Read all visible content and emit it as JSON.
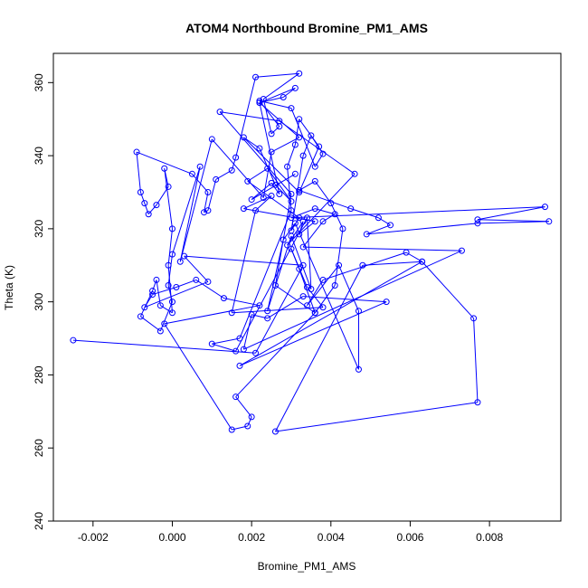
{
  "chart_data": {
    "type": "line",
    "title": "ATOM4 Northbound Bromine_PM1_AMS",
    "xlabel": "Bromine_PM1_AMS",
    "ylabel": "Theta (K)",
    "xlim": [
      -0.003,
      0.0098
    ],
    "ylim": [
      240,
      368
    ],
    "xticks": [
      -0.002,
      0.0,
      0.002,
      0.004,
      0.006,
      0.008
    ],
    "xtick_labels": [
      "-0.002",
      "0.000",
      "0.002",
      "0.004",
      "0.006",
      "0.008"
    ],
    "yticks": [
      240,
      260,
      280,
      300,
      320,
      340,
      360
    ],
    "ytick_labels": [
      "240",
      "260",
      "280",
      "300",
      "320",
      "340",
      "360"
    ],
    "grid": false,
    "series_color": "#0000ff",
    "marker": "open-circle",
    "series": [
      {
        "x": [
          -0.0025,
          0.0021,
          0.0033,
          0.0003,
          0.0009,
          -0.0007,
          -0.0005,
          0.0001,
          0.0006,
          0.0013,
          0.0022,
          -0.0002,
          0.0015,
          0.0019,
          0.002,
          0.0016,
          0.0036,
          0.0026,
          0.003,
          0.0012,
          0.0027,
          0.0046,
          0.0029,
          0.0033,
          0.0032,
          0.0036,
          0.0018,
          0.0025,
          0.0021,
          0.0015,
          0.0038,
          0.0034,
          0.003,
          0.0032,
          0.0036,
          0.0041,
          0.0043,
          0.004,
          0.0036,
          0.0032,
          0.0045,
          0.0052,
          0.0055,
          0.0049,
          0.0077,
          0.0095,
          0.0077,
          0.0094,
          0.003,
          0.0036,
          0.0041,
          0.0038,
          0.0033,
          0.0073,
          0.0018,
          0.002,
          0.0024,
          0.0033,
          0.0054,
          0.0017,
          0.0063,
          0.0048,
          0.0026,
          0.0077,
          0.0076,
          0.0063,
          0.0059,
          0.0038,
          0.0034,
          0.0042,
          0.0047,
          0.0047,
          0.0031,
          0.0028,
          0.0024,
          0.003,
          0.0035,
          0.0034,
          0.0016,
          0.001,
          0.0017,
          0.003,
          0.0029,
          0.0031,
          0.0032,
          0.0037,
          0.0032,
          0.0018,
          0.0022,
          0.0026,
          0.003,
          0.0024,
          0.0019,
          0.0032,
          0.003,
          0.0033,
          0.0035,
          0.0038,
          0.0036,
          0.003,
          0.0022,
          0.0027,
          0.0025,
          0.0023,
          0.0032,
          0.0021,
          0.0016,
          0.0015,
          0.0011,
          0.0009,
          0.0008,
          0.0009,
          0.0005,
          -0.0009,
          -0.0008,
          -0.0007,
          -0.0006,
          -0.0004,
          -0.0001,
          -0.0002,
          0.0,
          -0.0001,
          0.0,
          -0.0003,
          -0.0004,
          -0.0005,
          -0.0008,
          -0.0003,
          0.0,
          -0.0001,
          0.0,
          0.0007,
          0.0002,
          0.001,
          0.0023,
          0.0025,
          0.0032,
          0.0022,
          0.0028,
          0.0031,
          0.0022,
          0.0027,
          0.0025,
          0.002,
          0.0031
        ],
        "y": [
          289.5,
          286.0,
          310.0,
          312.5,
          305.5,
          298.5,
          302.0,
          304.0,
          306.0,
          301.0,
          299.0,
          294.0,
          265.0,
          266.0,
          268.5,
          274.0,
          297.0,
          304.5,
          329.5,
          352.0,
          349.5,
          335.0,
          315.5,
          322.0,
          318.5,
          322.0,
          325.5,
          329.0,
          325.0,
          297.0,
          298.5,
          304.0,
          314.5,
          309.0,
          297.0,
          304.5,
          320.0,
          327.0,
          333.0,
          330.5,
          325.5,
          323.0,
          321.0,
          318.5,
          321.5,
          322.0,
          322.5,
          326.0,
          323.0,
          325.5,
          324.0,
          322.0,
          315.0,
          314.0,
          287.0,
          296.5,
          295.5,
          301.5,
          300.0,
          282.5,
          311.0,
          310.0,
          264.5,
          272.5,
          295.5,
          311.0,
          313.5,
          306.0,
          299.0,
          310.0,
          297.5,
          281.5,
          321.5,
          317.0,
          297.5,
          318.0,
          303.5,
          323.0,
          286.5,
          288.5,
          290.0,
          325.0,
          337.0,
          343.0,
          350.0,
          342.5,
          330.0,
          345.0,
          342.0,
          332.0,
          327.5,
          336.5,
          333.0,
          323.0,
          319.5,
          340.0,
          345.5,
          340.5,
          337.0,
          353.0,
          355.0,
          348.0,
          346.0,
          355.5,
          362.5,
          361.5,
          339.5,
          336.0,
          333.5,
          325.0,
          324.5,
          330.0,
          335.0,
          341.0,
          330.0,
          327.0,
          324.0,
          326.5,
          331.5,
          336.5,
          320.0,
          310.0,
          297.0,
          299.0,
          306.0,
          303.0,
          296.0,
          292.0,
          300.0,
          304.5,
          313.0,
          337.0,
          311.0,
          344.5,
          328.5,
          341.0,
          345.0,
          354.5,
          356.0,
          358.5,
          354.5,
          329.5,
          332.5,
          328.0,
          335.0
        ]
      }
    ]
  }
}
